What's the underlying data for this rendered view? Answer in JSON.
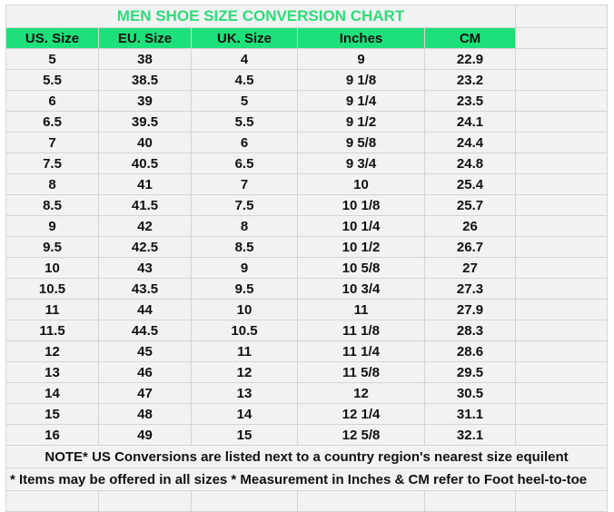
{
  "title": "MEN SHOE SIZE CONVERSION CHART",
  "colors": {
    "header_bg": "#1ee07a",
    "title_text": "#2ddc7a",
    "sheet_bg": "#f2f2f2"
  },
  "columns": [
    "US. Size",
    "EU. Size",
    "UK. Size",
    "Inches",
    "CM"
  ],
  "rows": [
    [
      "5",
      "38",
      "4",
      "9",
      "22.9"
    ],
    [
      "5.5",
      "38.5",
      "4.5",
      "9 1/8",
      "23.2"
    ],
    [
      "6",
      "39",
      "5",
      "9 1/4",
      "23.5"
    ],
    [
      "6.5",
      "39.5",
      "5.5",
      "9 1/2",
      "24.1"
    ],
    [
      "7",
      "40",
      "6",
      "9 5/8",
      "24.4"
    ],
    [
      "7.5",
      "40.5",
      "6.5",
      "9 3/4",
      "24.8"
    ],
    [
      "8",
      "41",
      "7",
      "10",
      "25.4"
    ],
    [
      "8.5",
      "41.5",
      "7.5",
      "10 1/8",
      "25.7"
    ],
    [
      "9",
      "42",
      "8",
      "10 1/4",
      "26"
    ],
    [
      "9.5",
      "42.5",
      "8.5",
      "10 1/2",
      "26.7"
    ],
    [
      "10",
      "43",
      "9",
      "10 5/8",
      "27"
    ],
    [
      "10.5",
      "43.5",
      "9.5",
      "10 3/4",
      "27.3"
    ],
    [
      "11",
      "44",
      "10",
      "11",
      "27.9"
    ],
    [
      "11.5",
      "44.5",
      "10.5",
      "11 1/8",
      "28.3"
    ],
    [
      "12",
      "45",
      "11",
      "11 1/4",
      "28.6"
    ],
    [
      "13",
      "46",
      "12",
      "11 5/8",
      "29.5"
    ],
    [
      "14",
      "47",
      "13",
      "12",
      "30.5"
    ],
    [
      "15",
      "48",
      "14",
      "12 1/4",
      "31.1"
    ],
    [
      "16",
      "49",
      "15",
      "12 5/8",
      "32.1"
    ]
  ],
  "notes": [
    "NOTE* US Conversions are listed next to a country region's nearest size equilent",
    "* Items may be offered in all sizes * Measurement in Inches & CM refer to Foot heel-to-toe"
  ]
}
